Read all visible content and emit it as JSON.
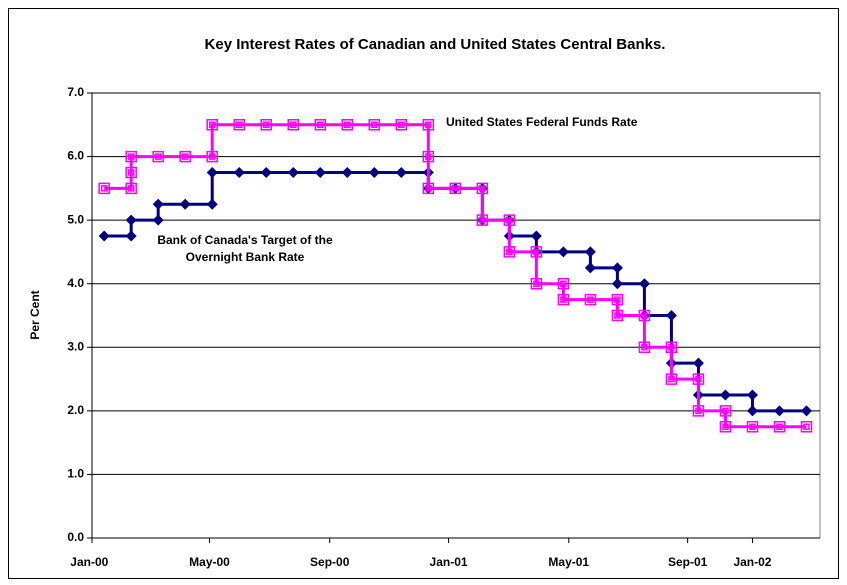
{
  "chart_data": {
    "type": "line",
    "step": true,
    "title": "Key Interest Rates of Canadian and United States Central Banks.",
    "y_label": "Per Cent",
    "xlim": [
      -0.45,
      26.5
    ],
    "xticks": [
      {
        "value": -0.55,
        "label": "Jan-00"
      },
      {
        "value": 3.9,
        "label": "May-00"
      },
      {
        "value": 8.35,
        "label": "Sep-00"
      },
      {
        "value": 12.75,
        "label": "Jan-01"
      },
      {
        "value": 17.2,
        "label": "May-01"
      },
      {
        "value": 21.6,
        "label": "Sep-01"
      },
      {
        "value": 24.0,
        "label": "Jan-02"
      }
    ],
    "ylim": [
      0,
      7
    ],
    "yticks": [
      {
        "value": 0,
        "label": "0.0"
      },
      {
        "value": 1,
        "label": "1.0"
      },
      {
        "value": 2,
        "label": "2.0"
      },
      {
        "value": 3,
        "label": "3.0"
      },
      {
        "value": 4,
        "label": "4.0"
      },
      {
        "value": 5,
        "label": "5.0"
      },
      {
        "value": 6,
        "label": "6.0"
      },
      {
        "value": 7,
        "label": "7.0"
      }
    ],
    "grid": true,
    "series": [
      {
        "name": "Bank of Canada's Target of the Overnight Bank Rate",
        "color": "#000080",
        "marker": "diamond",
        "x": [
          0,
          1,
          1,
          2,
          2,
          3,
          4,
          4,
          5,
          6,
          7,
          8,
          9,
          10,
          11,
          12,
          12,
          13,
          14,
          14,
          15,
          15,
          16,
          16,
          17,
          18,
          18,
          19,
          19,
          20,
          20,
          21,
          21,
          22,
          22,
          23,
          24,
          24,
          25,
          26
        ],
        "values": [
          4.75,
          4.75,
          5.0,
          5.0,
          5.25,
          5.25,
          5.25,
          5.75,
          5.75,
          5.75,
          5.75,
          5.75,
          5.75,
          5.75,
          5.75,
          5.75,
          5.5,
          5.5,
          5.5,
          5.0,
          5.0,
          4.75,
          4.75,
          4.5,
          4.5,
          4.5,
          4.25,
          4.25,
          4.0,
          4.0,
          3.5,
          3.5,
          2.75,
          2.75,
          2.25,
          2.25,
          2.25,
          2.0,
          2.0,
          2.0
        ]
      },
      {
        "name": "United States Federal Funds Rate",
        "color": "#ff00ff",
        "marker": "square",
        "x": [
          0,
          1,
          1,
          1,
          2,
          3,
          4,
          4,
          5,
          6,
          7,
          8,
          9,
          10,
          11,
          12,
          12,
          12,
          13,
          14,
          14,
          15,
          15,
          16,
          16,
          17,
          17,
          18,
          19,
          19,
          20,
          20,
          21,
          21,
          22,
          22,
          23,
          23,
          24,
          25,
          26
        ],
        "values": [
          5.5,
          5.5,
          5.75,
          6.0,
          6.0,
          6.0,
          6.0,
          6.5,
          6.5,
          6.5,
          6.5,
          6.5,
          6.5,
          6.5,
          6.5,
          6.5,
          6.0,
          5.5,
          5.5,
          5.5,
          5.0,
          5.0,
          4.5,
          4.5,
          4.0,
          4.0,
          3.75,
          3.75,
          3.75,
          3.5,
          3.5,
          3.0,
          3.0,
          2.5,
          2.5,
          2.0,
          2.0,
          1.75,
          1.75,
          1.75,
          1.75
        ]
      }
    ]
  }
}
